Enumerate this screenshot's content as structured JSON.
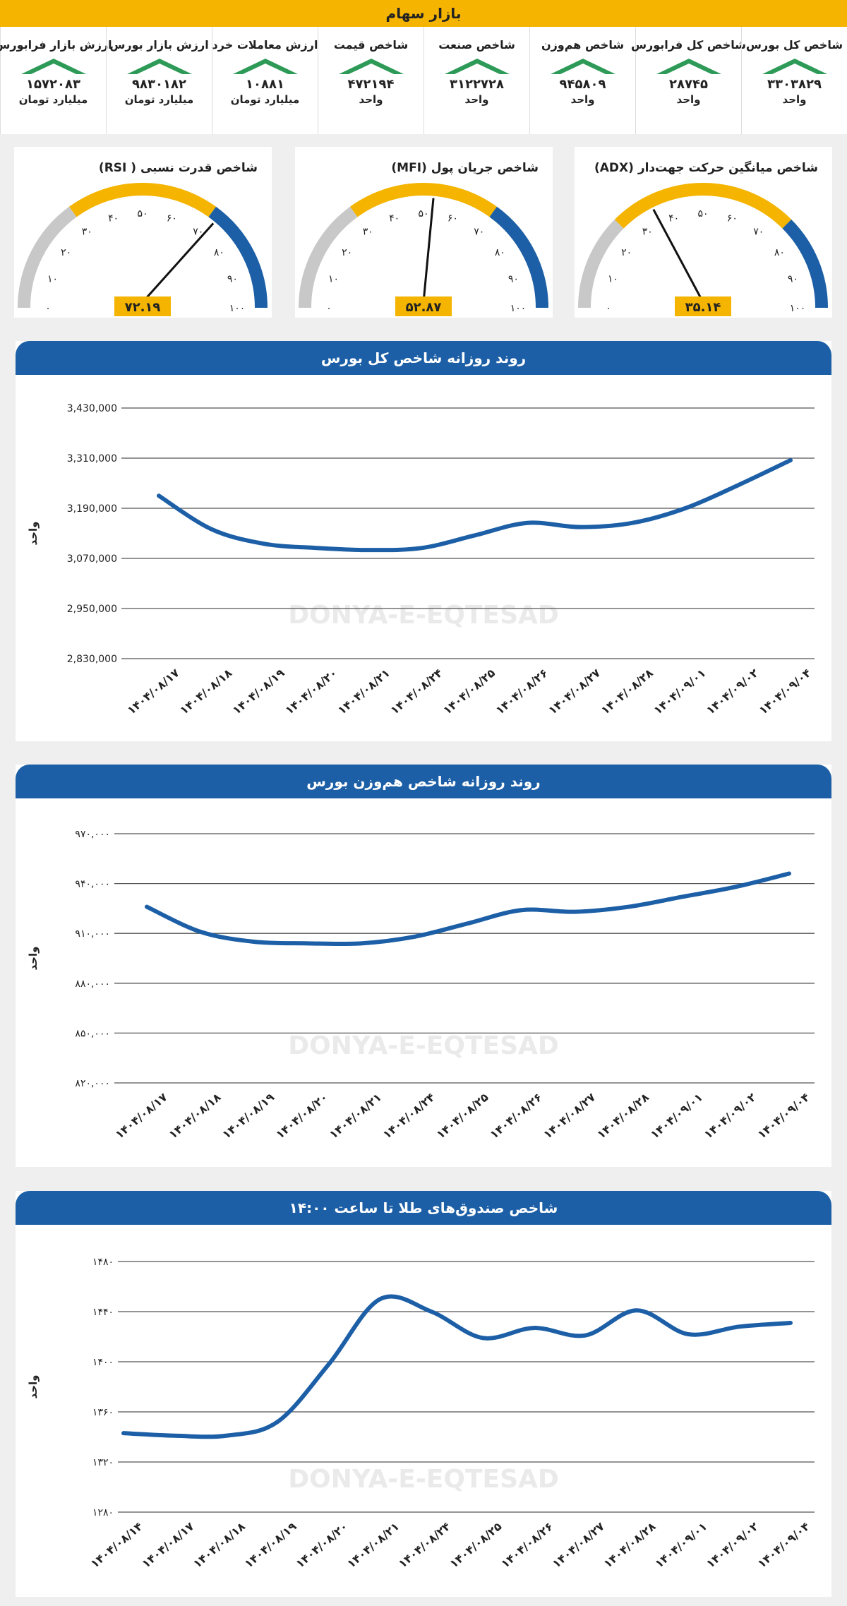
{
  "header": {
    "title": "بازار سهام"
  },
  "watermark": "DONYA-E-EQTESAD",
  "colors": {
    "yellow": "#f4b400",
    "blue": "#1c5fa6",
    "green": "#2e9a57",
    "gray": "#c8c8c8",
    "grid": "#555555"
  },
  "stats": [
    {
      "label": "شاخص کل بورس",
      "value": "۳۳۰۳۸۲۹",
      "unit": "واحد"
    },
    {
      "label": "شاخص کل فرابورس",
      "value": "۲۸۷۴۵",
      "unit": "واحد"
    },
    {
      "label": "شاخص هم‌وزن",
      "value": "۹۴۵۸۰۹",
      "unit": "واحد"
    },
    {
      "label": "شاخص صنعت",
      "value": "۳۱۲۲۷۲۸",
      "unit": "واحد"
    },
    {
      "label": "شاخص قیمت",
      "value": "۴۷۲۱۹۴",
      "unit": "واحد"
    },
    {
      "label": "ارزش معاملات خرد",
      "value": "۱۰۸۸۱",
      "unit": "میلیارد تومان"
    },
    {
      "label": "ارزش بازار بورس",
      "value": "۹۸۳۰۱۸۲",
      "unit": "میلیارد تومان"
    },
    {
      "label": "ارزش بازار فرابورس",
      "value": "۱۵۷۲۰۸۳",
      "unit": "میلیارد تومان"
    }
  ],
  "gauges": [
    {
      "title": "شاخص قدرت نسبی ( RSI)",
      "value": 72.19,
      "value_label": "۷۲.۱۹",
      "bands": [
        [
          0,
          30,
          "gray"
        ],
        [
          30,
          70,
          "yellow"
        ],
        [
          70,
          100,
          "blue"
        ]
      ]
    },
    {
      "title": "شاخص جریان پول (MFI)",
      "value": 52.87,
      "value_label": "۵۲.۸۷",
      "bands": [
        [
          0,
          30,
          "gray"
        ],
        [
          30,
          70,
          "yellow"
        ],
        [
          70,
          100,
          "blue"
        ]
      ]
    },
    {
      "title": "شاخص میانگین حرکت جهت‌دار (ADX)",
      "value": 35.14,
      "value_label": "۳۵.۱۴",
      "bands": [
        [
          0,
          25,
          "gray"
        ],
        [
          25,
          75,
          "yellow"
        ],
        [
          75,
          100,
          "blue"
        ]
      ]
    }
  ],
  "gauge_ticks": [
    "۰",
    "۱۰",
    "۲۰",
    "۳۰",
    "۴۰",
    "۵۰",
    "۶۰",
    "۷۰",
    "۸۰",
    "۹۰",
    "۱۰۰"
  ],
  "chart_data": [
    {
      "type": "line",
      "title": "روند روزانه شاخص کل بورس",
      "ylabel": "واحد",
      "ylim": [
        2830000,
        3430000
      ],
      "yticks": [
        2830000,
        2950000,
        3070000,
        3190000,
        3310000,
        3430000
      ],
      "ytick_labels": [
        "2,830,000",
        "2,950,000",
        "3,070,000",
        "3,190,000",
        "3,310,000",
        "3,430,000"
      ],
      "categories": [
        "۱۴۰۴/۰۸/۱۷",
        "۱۴۰۴/۰۸/۱۸",
        "۱۴۰۴/۰۸/۱۹",
        "۱۴۰۴/۰۸/۲۰",
        "۱۴۰۴/۰۸/۲۱",
        "۱۴۰۴/۰۸/۲۴",
        "۱۴۰۴/۰۸/۲۵",
        "۱۴۰۴/۰۸/۲۶",
        "۱۴۰۴/۰۸/۲۷",
        "۱۴۰۴/۰۸/۲۸",
        "۱۴۰۴/۰۹/۰۱",
        "۱۴۰۴/۰۹/۰۲",
        "۱۴۰۴/۰۹/۰۴"
      ],
      "values": [
        3220000,
        3140000,
        3105000,
        3095000,
        3090000,
        3095000,
        3125000,
        3155000,
        3145000,
        3155000,
        3190000,
        3245000,
        3305000
      ]
    },
    {
      "type": "line",
      "title": "روند روزانه شاخص هم‌وزن بورس",
      "ylabel": "واحد",
      "ylim": [
        820000,
        970000
      ],
      "yticks": [
        820000,
        850000,
        880000,
        910000,
        940000,
        970000
      ],
      "ytick_labels": [
        "۸۲۰,۰۰۰",
        "۸۵۰,۰۰۰",
        "۸۸۰,۰۰۰",
        "۹۱۰,۰۰۰",
        "۹۴۰,۰۰۰",
        "۹۷۰,۰۰۰"
      ],
      "categories": [
        "۱۴۰۴/۰۸/۱۷",
        "۱۴۰۴/۰۸/۱۸",
        "۱۴۰۴/۰۸/۱۹",
        "۱۴۰۴/۰۸/۲۰",
        "۱۴۰۴/۰۸/۲۱",
        "۱۴۰۴/۰۸/۲۴",
        "۱۴۰۴/۰۸/۲۵",
        "۱۴۰۴/۰۸/۲۶",
        "۱۴۰۴/۰۸/۲۷",
        "۱۴۰۴/۰۸/۲۸",
        "۱۴۰۴/۰۹/۰۱",
        "۱۴۰۴/۰۹/۰۲",
        "۱۴۰۴/۰۹/۰۴"
      ],
      "values": [
        926000,
        911000,
        905000,
        904000,
        904000,
        908000,
        916000,
        924000,
        923000,
        926000,
        932000,
        938000,
        946000
      ]
    },
    {
      "type": "line",
      "title": "شاخص صندوق‌های طلا تا ساعت ۱۴:۰۰",
      "ylabel": "واحد",
      "ylim": [
        1280,
        1480
      ],
      "yticks": [
        1280,
        1320,
        1360,
        1400,
        1440,
        1480
      ],
      "ytick_labels": [
        "۱۲۸۰",
        "۱۳۲۰",
        "۱۳۶۰",
        "۱۴۰۰",
        "۱۴۴۰",
        "۱۴۸۰"
      ],
      "categories": [
        "۱۴۰۴/۰۸/۱۴",
        "۱۴۰۴/۰۸/۱۷",
        "۱۴۰۴/۰۸/۱۸",
        "۱۴۰۴/۰۸/۱۹",
        "۱۴۰۴/۰۸/۲۰",
        "۱۴۰۴/۰۸/۲۱",
        "۱۴۰۴/۰۸/۲۴",
        "۱۴۰۴/۰۸/۲۵",
        "۱۴۰۴/۰۸/۲۶",
        "۱۴۰۴/۰۸/۲۷",
        "۱۴۰۴/۰۸/۲۸",
        "۱۴۰۴/۰۹/۰۱",
        "۱۴۰۴/۰۹/۰۲",
        "۱۴۰۴/۰۹/۰۴"
      ],
      "values": [
        1343,
        1341,
        1341,
        1352,
        1398,
        1450,
        1440,
        1419,
        1427,
        1421,
        1441,
        1422,
        1428,
        1431
      ]
    }
  ]
}
